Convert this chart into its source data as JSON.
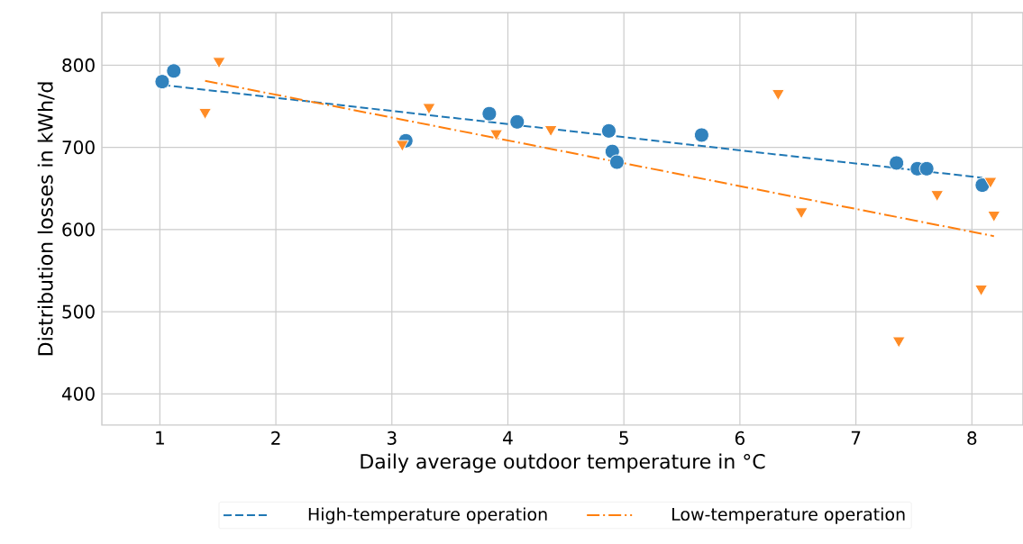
{
  "chart_data": {
    "type": "scatter",
    "xlabel": "Daily average outdoor temperature in °C",
    "ylabel": "Distribution losses in kWh/d",
    "xlim": [
      0.5,
      8.44
    ],
    "ylim": [
      362,
      864
    ],
    "xticks": [
      1,
      2,
      3,
      4,
      5,
      6,
      7,
      8
    ],
    "yticks": [
      400,
      500,
      600,
      700,
      800
    ],
    "grid": true,
    "legend": "bottom",
    "series": [
      {
        "type": "scatter",
        "color": "#3182bd",
        "marker": "circle",
        "x": [
          1.02,
          1.12,
          3.12,
          3.84,
          4.08,
          4.87,
          4.9,
          4.94,
          5.67,
          7.35,
          7.53,
          7.61,
          8.09
        ],
        "values": [
          780,
          793,
          708,
          741,
          731,
          720,
          695,
          682,
          715,
          681,
          674,
          674,
          654
        ]
      },
      {
        "type": "scatter",
        "color": "#ff8c26",
        "marker": "triangle",
        "x": [
          1.39,
          1.51,
          3.09,
          3.32,
          3.9,
          4.37,
          6.33,
          6.53,
          7.37,
          7.7,
          8.08,
          8.16,
          8.19
        ],
        "values": [
          743,
          805,
          704,
          749,
          717,
          722,
          766,
          622,
          465,
          643,
          528,
          659,
          618
        ]
      },
      {
        "type": "line",
        "name": "High-temperature operation",
        "color": "#1f77b4",
        "line_style": "dashed",
        "x": [
          1.02,
          8.09
        ],
        "values": [
          776,
          663
        ]
      },
      {
        "type": "line",
        "name": "Low-temperature operation",
        "color": "#ff7f0e",
        "line_style": "dashdot",
        "x": [
          1.39,
          8.19
        ],
        "values": [
          781,
          592
        ]
      }
    ]
  }
}
